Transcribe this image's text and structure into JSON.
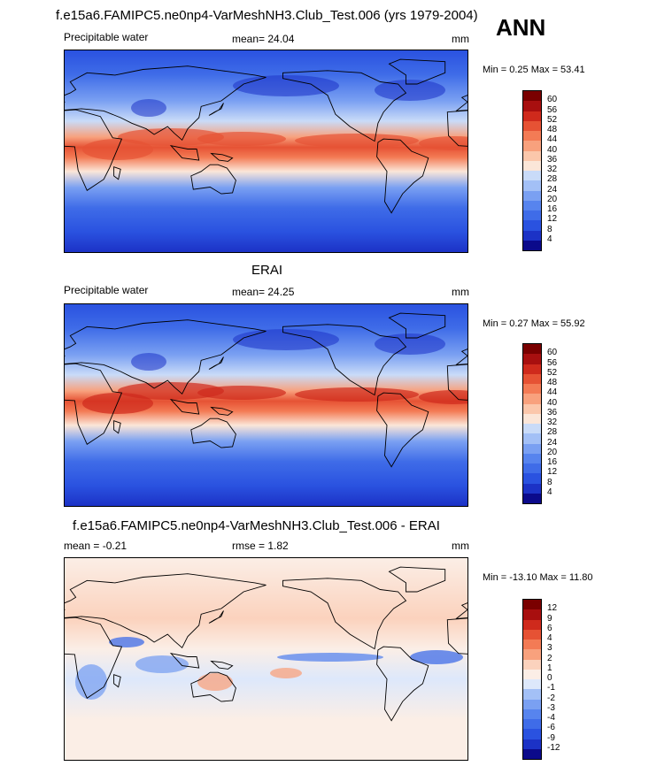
{
  "title": "f.e15a6.FAMIPC5.ne0np4-VarMeshNH3.Club_Test.006 (yrs 1979-2004)",
  "season": "ANN",
  "chart_data": [
    {
      "type": "heatmap",
      "title": "",
      "variable": "Precipitable water",
      "mean_label": "mean=  24.04",
      "units": "mm",
      "min_max_label": "Min =   0.25 Max =  53.41",
      "min": 0.25,
      "max": 53.41,
      "mean": 24.04,
      "colorbar_levels": [
        "4",
        "8",
        "12",
        "16",
        "20",
        "24",
        "28",
        "32",
        "36",
        "40",
        "44",
        "48",
        "52",
        "56",
        "60"
      ],
      "colorbar_colors": [
        "#0b0a8b",
        "#1c32c6",
        "#2a52e0",
        "#3f6ce8",
        "#5784ee",
        "#7aa0f2",
        "#a3c0f6",
        "#c9dbf8",
        "#fbe6d8",
        "#fbc7ab",
        "#f8a17d",
        "#f37b55",
        "#e65234",
        "#cf2a1c",
        "#a80f0f",
        "#7a0000"
      ],
      "style": "model"
    },
    {
      "type": "heatmap",
      "title": "ERAI",
      "variable": "Precipitable water",
      "mean_label": "mean=  24.25",
      "units": "mm",
      "min_max_label": "Min =   0.27 Max =  55.92",
      "min": 0.27,
      "max": 55.92,
      "mean": 24.25,
      "colorbar_levels": [
        "4",
        "8",
        "12",
        "16",
        "20",
        "24",
        "28",
        "32",
        "36",
        "40",
        "44",
        "48",
        "52",
        "56",
        "60"
      ],
      "colorbar_colors": [
        "#0b0a8b",
        "#1c32c6",
        "#2a52e0",
        "#3f6ce8",
        "#5784ee",
        "#7aa0f2",
        "#a3c0f6",
        "#c9dbf8",
        "#fbe6d8",
        "#fbc7ab",
        "#f8a17d",
        "#f37b55",
        "#e65234",
        "#cf2a1c",
        "#a80f0f",
        "#7a0000"
      ],
      "style": "obs"
    },
    {
      "type": "heatmap",
      "title": "f.e15a6.FAMIPC5.ne0np4-VarMeshNH3.Club_Test.006 - ERAI",
      "variable": "",
      "mean_label": "mean =  -0.21",
      "rmse_label": "rmse =   1.82",
      "units": "mm",
      "min_max_label": "Min = -13.10 Max =  11.80",
      "min": -13.1,
      "max": 11.8,
      "mean": -0.21,
      "rmse": 1.82,
      "colorbar_levels": [
        "-12",
        "-9",
        "-6",
        "-4",
        "-3",
        "-2",
        "-1",
        "0",
        "1",
        "2",
        "3",
        "4",
        "6",
        "9",
        "12"
      ],
      "colorbar_colors": [
        "#0b0a8b",
        "#1c32c6",
        "#2a52e0",
        "#3f6ce8",
        "#5784ee",
        "#7aa0f2",
        "#a3c0f6",
        "#dde8fb",
        "#fbeee6",
        "#fbd2bd",
        "#f8a17d",
        "#f37b55",
        "#e65234",
        "#cf2a1c",
        "#a80f0f",
        "#7a0000"
      ],
      "style": "diff"
    }
  ]
}
